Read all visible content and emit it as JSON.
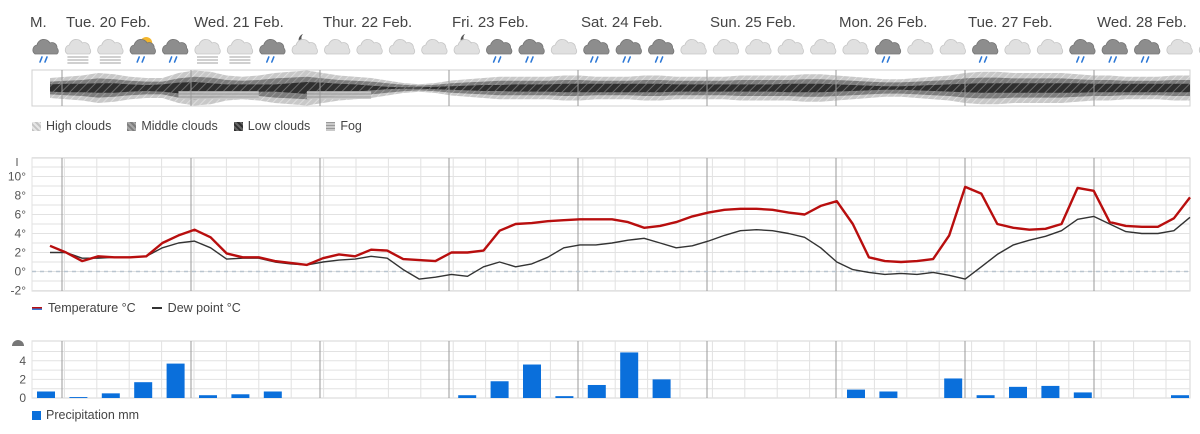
{
  "days": [
    "M.",
    "Tue. 20 Feb.",
    "Wed. 21 Feb.",
    "Thur. 22 Feb.",
    "Fri. 23 Feb.",
    "Sat. 24 Feb.",
    "Sun. 25 Feb.",
    "Mon. 26 Feb.",
    "Tue. 27 Feb.",
    "Wed. 28 Feb."
  ],
  "weather_icons": [
    "rain-cloud",
    "fog-cloud",
    "fog-cloud",
    "sun-cloud-rain",
    "rain-cloud",
    "fog-cloud",
    "fog-cloud",
    "rain-cloud",
    "night-cloud",
    "cloud",
    "cloud",
    "cloud",
    "cloud",
    "night-cloud",
    "rain-cloud",
    "rain-cloud",
    "cloud",
    "rain-cloud",
    "rain-cloud",
    "rain-cloud",
    "cloud",
    "cloud",
    "cloud",
    "cloud",
    "cloud",
    "cloud",
    "rain-cloud",
    "cloud",
    "cloud",
    "rain-cloud",
    "cloud",
    "cloud",
    "rain-cloud",
    "rain-cloud",
    "rain-cloud",
    "cloud",
    "cloud",
    "cloud"
  ],
  "colors": {
    "temperature": "#b80e0e",
    "dew_point": "#333333",
    "precipitation": "#0a6fdb",
    "grid": "#e2e2e2",
    "day_line": "#9a9a9a",
    "zero_line": "#b9c5cf"
  },
  "cloud_legend": {
    "items": [
      {
        "label": "High clouds",
        "color": "#c4c4c4"
      },
      {
        "label": "Middle clouds",
        "color": "#8a8a8a"
      },
      {
        "label": "Low clouds",
        "color": "#3d3d3d"
      },
      {
        "label": "Fog",
        "color": "#b0b0b0"
      }
    ]
  },
  "temp_legend": {
    "temperature": "Temperature °C",
    "dew_point": "Dew point °C"
  },
  "precip_legend": {
    "precipitation": "Precipitation mm"
  },
  "chart_data": [
    {
      "type": "line",
      "y_ticks": [
        "10°",
        "8°",
        "6°",
        "4°",
        "2°",
        "0°",
        "-2°"
      ],
      "ylim": [
        -2,
        11
      ],
      "x": [
        0,
        1,
        2,
        3,
        4,
        5,
        6,
        7,
        8,
        9,
        10,
        11,
        12,
        13,
        14,
        15,
        16,
        17,
        18,
        19,
        20,
        21,
        22,
        23,
        24,
        25,
        26,
        27,
        28,
        29,
        30,
        31,
        32,
        33,
        34,
        35,
        36,
        37,
        38,
        39,
        40,
        41,
        42,
        43,
        44,
        45,
        46,
        47,
        48,
        49,
        50,
        51,
        52,
        53,
        54,
        55,
        56,
        57,
        58,
        59,
        60,
        61,
        62,
        63,
        64,
        65,
        66,
        67,
        68,
        69,
        70,
        71
      ],
      "series": [
        {
          "name": "Temperature °C",
          "values": [
            2.7,
            2.0,
            1.1,
            1.6,
            1.5,
            1.5,
            1.6,
            3.0,
            3.8,
            4.4,
            3.6,
            1.9,
            1.5,
            1.5,
            1.1,
            0.9,
            0.7,
            1.4,
            1.8,
            1.6,
            2.3,
            2.2,
            1.3,
            1.2,
            1.1,
            2.0,
            2.0,
            2.2,
            4.3,
            5.0,
            5.1,
            5.3,
            5.4,
            5.5,
            5.5,
            5.5,
            5.2,
            4.6,
            4.8,
            5.2,
            5.8,
            6.2,
            6.5,
            6.6,
            6.6,
            6.5,
            6.2,
            6.0,
            6.9,
            7.4,
            5.0,
            1.5,
            1.1,
            1.0,
            1.1,
            1.3,
            3.8,
            8.9,
            8.2,
            5.0,
            4.6,
            4.4,
            4.5,
            5.0,
            8.8,
            8.5,
            5.2,
            4.8,
            4.7,
            4.7,
            5.6,
            7.8
          ]
        },
        {
          "name": "Dew point °C",
          "values": [
            2.0,
            2.0,
            1.4,
            1.4,
            1.5,
            1.5,
            1.6,
            2.5,
            3.0,
            3.2,
            2.5,
            1.3,
            1.4,
            1.4,
            1.0,
            0.8,
            0.7,
            1.0,
            1.2,
            1.3,
            1.6,
            1.4,
            0.2,
            -0.8,
            -0.6,
            -0.3,
            -0.5,
            0.5,
            1.0,
            0.5,
            0.8,
            1.5,
            2.5,
            2.8,
            2.8,
            3.0,
            3.3,
            3.5,
            3.0,
            2.5,
            2.7,
            3.2,
            3.8,
            4.3,
            4.4,
            4.3,
            4.0,
            3.6,
            2.5,
            1.0,
            0.2,
            -0.1,
            -0.3,
            -0.2,
            -0.3,
            -0.1,
            -0.4,
            -0.8,
            0.5,
            1.8,
            2.8,
            3.3,
            3.7,
            4.3,
            5.5,
            5.8,
            5.0,
            4.2,
            4.0,
            4.0,
            4.3,
            5.7
          ]
        }
      ]
    },
    {
      "type": "bar",
      "y_ticks": [
        "4",
        "2",
        "0"
      ],
      "ylim": [
        0,
        5.5
      ],
      "categories": [
        0,
        1,
        2,
        3,
        4,
        5,
        6,
        7,
        8,
        9,
        10,
        11,
        12,
        13,
        14,
        15,
        16,
        17,
        18,
        19,
        20,
        21,
        22,
        23,
        24,
        25,
        26,
        27,
        28,
        29,
        30,
        31,
        32,
        33,
        34,
        35,
        36,
        37
      ],
      "values": [
        0.7,
        0.1,
        0.5,
        1.7,
        3.7,
        0.3,
        0.4,
        0.7,
        0,
        0,
        0,
        0,
        0,
        0.3,
        1.8,
        3.6,
        0.2,
        1.4,
        4.9,
        2.0,
        0,
        0,
        0,
        0,
        0,
        0.9,
        0.7,
        0,
        2.1,
        0.3,
        1.2,
        1.3,
        0.6,
        0,
        0,
        0.3,
        0.2,
        0
      ],
      "series_name": "Precipitation mm"
    }
  ]
}
